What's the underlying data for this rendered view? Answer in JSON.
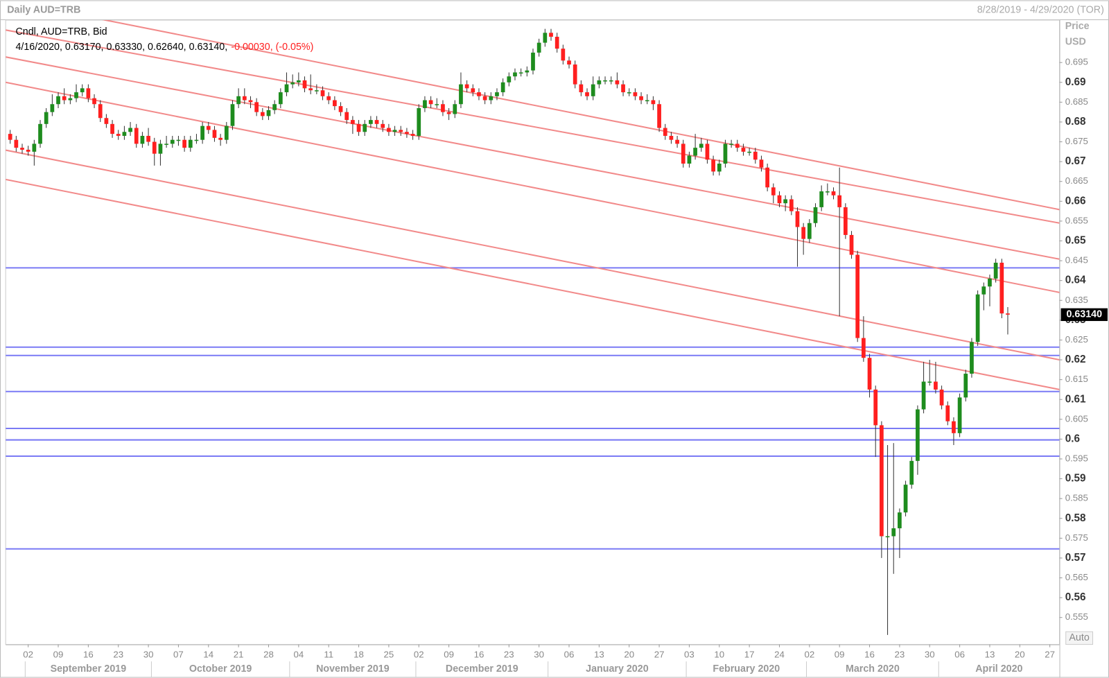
{
  "header": {
    "title": "Daily AUD=TRB",
    "range": "8/28/2019 - 4/29/2020 (TOR)",
    "axis_title": "Price",
    "axis_unit": "USD",
    "auto_label": "Auto"
  },
  "chart_data": {
    "type": "candlestick",
    "legend_title": "Cndl, AUD=TRB, Bid",
    "ohlc_label": "4/16/2020, 0.63170, 0.63330, 0.62640, 0.63140,",
    "change_label": "-0.00030, (-0.05%)",
    "up_color": "#1e8c1e",
    "down_color": "#ff1f1f",
    "trend_color": "#f28a8a",
    "level_color": "#7a7af5",
    "categories": [
      null,
      null,
      null,
      null,
      null,
      null,
      null,
      null,
      null,
      null,
      null,
      null,
      null,
      null,
      null,
      null,
      null,
      null,
      null,
      null,
      null,
      null,
      null,
      null,
      null,
      null,
      null,
      null,
      null,
      null,
      null,
      null,
      null,
      null,
      null,
      null,
      null,
      null,
      null,
      null,
      null,
      null,
      null,
      null,
      null,
      null,
      null,
      null,
      null,
      null,
      null,
      null,
      null,
      null,
      null,
      null,
      null,
      null,
      null,
      null,
      null,
      null,
      null,
      null,
      null,
      null,
      null,
      null,
      null,
      null,
      null,
      null,
      null,
      null,
      null,
      null,
      null,
      null,
      null,
      null,
      null,
      null,
      null,
      null,
      null,
      null,
      null,
      null,
      null,
      null,
      null,
      null,
      null,
      null,
      null,
      null,
      null,
      null,
      null,
      null,
      null,
      null,
      null,
      null,
      null,
      null,
      null,
      null,
      null,
      null,
      null,
      null,
      null,
      null,
      null,
      null,
      null,
      null,
      null,
      null,
      null,
      null,
      null,
      null,
      null,
      null,
      null,
      null,
      null,
      null,
      null,
      null,
      null,
      null,
      null,
      null,
      null,
      null,
      null,
      null,
      null,
      null,
      null,
      null,
      null,
      null,
      null,
      null,
      null,
      null,
      null,
      null,
      null,
      null,
      null,
      null,
      null,
      null,
      null,
      null,
      null,
      null,
      null,
      null,
      null,
      null,
      null
    ],
    "open": [
      0.677,
      0.6755,
      0.6735,
      0.673,
      0.6725,
      0.6745,
      0.6795,
      0.6825,
      0.6845,
      0.6865,
      0.6855,
      0.686,
      0.6875,
      0.6885,
      0.686,
      0.6845,
      0.681,
      0.6795,
      0.677,
      0.6765,
      0.6775,
      0.6785,
      0.6745,
      0.6765,
      0.675,
      0.672,
      0.6745,
      0.6745,
      0.6755,
      0.6755,
      0.6735,
      0.6755,
      0.6755,
      0.679,
      0.678,
      0.676,
      0.6755,
      0.679,
      0.6845,
      0.6865,
      0.6855,
      0.685,
      0.6825,
      0.6815,
      0.683,
      0.6845,
      0.6875,
      0.6895,
      0.69,
      0.6905,
      0.6885,
      0.688,
      0.688,
      0.6865,
      0.6855,
      0.684,
      0.6825,
      0.6805,
      0.6795,
      0.6775,
      0.6795,
      0.6805,
      0.6795,
      0.6785,
      0.6775,
      0.678,
      0.6775,
      0.677,
      0.6765,
      0.6835,
      0.6855,
      0.6845,
      0.6845,
      0.6825,
      0.682,
      0.6845,
      0.6895,
      0.6885,
      0.6875,
      0.6865,
      0.6855,
      0.6865,
      0.6875,
      0.69,
      0.6915,
      0.6925,
      0.6925,
      0.693,
      0.6975,
      0.7,
      0.7025,
      0.7015,
      0.6985,
      0.6955,
      0.6945,
      0.6895,
      0.6875,
      0.6865,
      0.6895,
      0.6905,
      0.6905,
      0.6905,
      0.6895,
      0.6875,
      0.6875,
      0.6865,
      0.6855,
      0.6855,
      0.6845,
      0.6785,
      0.6765,
      0.6755,
      0.6745,
      0.6695,
      0.6715,
      0.6735,
      0.6745,
      0.6705,
      0.6675,
      0.6695,
      0.6745,
      0.6745,
      0.6735,
      0.6725,
      0.6725,
      0.6705,
      0.6685,
      0.6635,
      0.6615,
      0.6595,
      0.6605,
      0.6575,
      0.6535,
      0.6505,
      0.6545,
      0.6585,
      0.6625,
      0.6625,
      0.6615,
      0.6585,
      0.6515,
      0.6465,
      0.6255,
      0.6205,
      0.6125,
      0.6035,
      0.5755,
      0.5755,
      0.5775,
      0.5815,
      0.5885,
      0.5945,
      0.6075,
      0.6145,
      0.6145,
      0.6125,
      0.6085,
      0.6045,
      0.6015,
      0.6105,
      0.6165,
      0.6245,
      0.6365,
      0.6385,
      0.6405,
      0.6445,
      0.6317
    ],
    "high": [
      0.678,
      0.6765,
      0.6745,
      0.674,
      0.6755,
      0.6805,
      0.6835,
      0.687,
      0.6875,
      0.6885,
      0.687,
      0.6895,
      0.6895,
      0.6895,
      0.687,
      0.6855,
      0.682,
      0.6805,
      0.678,
      0.679,
      0.68,
      0.6795,
      0.6775,
      0.6785,
      0.676,
      0.6755,
      0.6765,
      0.6765,
      0.6765,
      0.6765,
      0.6765,
      0.677,
      0.68,
      0.68,
      0.679,
      0.677,
      0.68,
      0.6855,
      0.6885,
      0.6885,
      0.6865,
      0.686,
      0.6835,
      0.684,
      0.6855,
      0.6885,
      0.6925,
      0.692,
      0.6925,
      0.6915,
      0.692,
      0.6895,
      0.689,
      0.6875,
      0.6865,
      0.685,
      0.6835,
      0.6815,
      0.6805,
      0.6805,
      0.6815,
      0.6815,
      0.6805,
      0.6795,
      0.679,
      0.679,
      0.6785,
      0.678,
      0.6845,
      0.6865,
      0.6865,
      0.686,
      0.6855,
      0.6835,
      0.6855,
      0.6925,
      0.6905,
      0.6895,
      0.6885,
      0.6875,
      0.6875,
      0.6885,
      0.691,
      0.6925,
      0.6935,
      0.6935,
      0.694,
      0.6985,
      0.701,
      0.7035,
      0.7035,
      0.7025,
      0.6995,
      0.6965,
      0.6955,
      0.6905,
      0.6885,
      0.6915,
      0.6915,
      0.6915,
      0.6915,
      0.6925,
      0.6905,
      0.6885,
      0.6885,
      0.6875,
      0.687,
      0.6865,
      0.6855,
      0.6795,
      0.6775,
      0.6765,
      0.6755,
      0.6725,
      0.677,
      0.676,
      0.6755,
      0.6715,
      0.6705,
      0.6755,
      0.6755,
      0.6755,
      0.6745,
      0.6735,
      0.6735,
      0.6715,
      0.6695,
      0.6645,
      0.6625,
      0.6615,
      0.6615,
      0.6585,
      0.6545,
      0.6555,
      0.6595,
      0.664,
      0.6645,
      0.6635,
      0.6685,
      0.6595,
      0.6525,
      0.6475,
      0.631,
      0.6215,
      0.6135,
      0.6045,
      0.5985,
      0.599,
      0.5825,
      0.5895,
      0.5955,
      0.6085,
      0.6195,
      0.62,
      0.6195,
      0.6135,
      0.6095,
      0.6055,
      0.6115,
      0.6175,
      0.6255,
      0.6375,
      0.6395,
      0.6415,
      0.6455,
      0.6455,
      0.6333
    ],
    "low": [
      0.6745,
      0.6725,
      0.672,
      0.6715,
      0.669,
      0.6735,
      0.6785,
      0.6815,
      0.6835,
      0.6845,
      0.6845,
      0.685,
      0.6865,
      0.685,
      0.6835,
      0.68,
      0.6785,
      0.676,
      0.6755,
      0.6755,
      0.6765,
      0.6735,
      0.6735,
      0.674,
      0.669,
      0.669,
      0.6735,
      0.6735,
      0.674,
      0.6725,
      0.6725,
      0.6745,
      0.6745,
      0.677,
      0.675,
      0.674,
      0.6745,
      0.678,
      0.6835,
      0.6845,
      0.6835,
      0.6815,
      0.6805,
      0.6805,
      0.682,
      0.6835,
      0.6865,
      0.6885,
      0.689,
      0.6875,
      0.687,
      0.687,
      0.6855,
      0.6845,
      0.683,
      0.6815,
      0.6795,
      0.677,
      0.6765,
      0.6765,
      0.6785,
      0.6785,
      0.6775,
      0.6765,
      0.6765,
      0.6765,
      0.676,
      0.6755,
      0.6755,
      0.6825,
      0.6835,
      0.6835,
      0.6815,
      0.6805,
      0.681,
      0.6835,
      0.6875,
      0.6865,
      0.6855,
      0.6845,
      0.6845,
      0.6855,
      0.6865,
      0.689,
      0.6905,
      0.6915,
      0.6915,
      0.692,
      0.6965,
      0.699,
      0.7005,
      0.6975,
      0.6945,
      0.6935,
      0.6885,
      0.6865,
      0.6855,
      0.6855,
      0.6885,
      0.6895,
      0.6895,
      0.6885,
      0.6865,
      0.6865,
      0.6855,
      0.6845,
      0.6845,
      0.683,
      0.6775,
      0.6755,
      0.6745,
      0.6735,
      0.6685,
      0.6685,
      0.6705,
      0.6725,
      0.6695,
      0.6665,
      0.6665,
      0.6685,
      0.6735,
      0.6725,
      0.6715,
      0.6715,
      0.6695,
      0.6675,
      0.6625,
      0.6595,
      0.6585,
      0.6575,
      0.6565,
      0.6435,
      0.6465,
      0.6495,
      0.6535,
      0.6575,
      0.6615,
      0.6605,
      0.631,
      0.6505,
      0.6455,
      0.6245,
      0.6195,
      0.6105,
      0.5955,
      0.57,
      0.5506,
      0.566,
      0.57,
      0.5805,
      0.5875,
      0.591,
      0.6065,
      0.6135,
      0.6115,
      0.6075,
      0.6035,
      0.5985,
      0.6005,
      0.6095,
      0.6155,
      0.6235,
      0.6325,
      0.6335,
      0.6395,
      0.6305,
      0.6264
    ],
    "close": [
      0.6755,
      0.6735,
      0.673,
      0.6725,
      0.6745,
      0.6795,
      0.6825,
      0.6845,
      0.6865,
      0.6855,
      0.686,
      0.6875,
      0.6885,
      0.686,
      0.6845,
      0.681,
      0.6795,
      0.677,
      0.6765,
      0.6775,
      0.6785,
      0.6745,
      0.6765,
      0.675,
      0.672,
      0.6745,
      0.6745,
      0.6755,
      0.6755,
      0.6735,
      0.6755,
      0.6755,
      0.679,
      0.678,
      0.676,
      0.6755,
      0.679,
      0.6845,
      0.6865,
      0.6855,
      0.685,
      0.6825,
      0.6815,
      0.683,
      0.6845,
      0.6875,
      0.6895,
      0.69,
      0.6905,
      0.6885,
      0.688,
      0.688,
      0.6865,
      0.6855,
      0.684,
      0.6825,
      0.6805,
      0.6795,
      0.6775,
      0.6795,
      0.6805,
      0.6795,
      0.6785,
      0.6775,
      0.678,
      0.6775,
      0.677,
      0.6765,
      0.6835,
      0.6855,
      0.6845,
      0.6845,
      0.6825,
      0.682,
      0.6845,
      0.6895,
      0.6885,
      0.6875,
      0.6865,
      0.6855,
      0.6865,
      0.6875,
      0.69,
      0.6915,
      0.6925,
      0.6925,
      0.693,
      0.6975,
      0.7,
      0.7025,
      0.7015,
      0.6985,
      0.6955,
      0.6945,
      0.6895,
      0.6875,
      0.6865,
      0.6895,
      0.6905,
      0.6905,
      0.6905,
      0.6895,
      0.6875,
      0.6875,
      0.6865,
      0.6855,
      0.6855,
      0.6845,
      0.6785,
      0.6765,
      0.6755,
      0.6745,
      0.6695,
      0.6715,
      0.6735,
      0.6745,
      0.6705,
      0.6675,
      0.6695,
      0.6745,
      0.6745,
      0.6735,
      0.6725,
      0.6725,
      0.6705,
      0.6685,
      0.6635,
      0.6615,
      0.6595,
      0.6605,
      0.6575,
      0.6535,
      0.6505,
      0.6545,
      0.6585,
      0.6625,
      0.6625,
      0.6615,
      0.6585,
      0.6515,
      0.6465,
      0.6255,
      0.6205,
      0.6125,
      0.6035,
      0.5755,
      0.5755,
      0.5775,
      0.5815,
      0.5885,
      0.5945,
      0.6075,
      0.6145,
      0.6145,
      0.6125,
      0.6085,
      0.6045,
      0.6015,
      0.6105,
      0.6165,
      0.6245,
      0.6365,
      0.6385,
      0.6405,
      0.6445,
      0.6317,
      0.6314
    ],
    "last_price": {
      "value": 0.6314,
      "label": "0.63140"
    },
    "horizontal_lines": [
      0.6432,
      0.6232,
      0.6211,
      0.612,
      0.6027,
      0.5998,
      0.5957,
      0.5723
    ],
    "trend_lines": [
      {
        "start": 0.7107,
        "end": 0.6579
      },
      {
        "start": 0.7032,
        "end": 0.6545
      },
      {
        "start": 0.6964,
        "end": 0.6454
      },
      {
        "start": 0.69,
        "end": 0.637
      },
      {
        "start": 0.6729,
        "end": 0.62
      },
      {
        "start": 0.6655,
        "end": 0.6125
      }
    ],
    "xlim": [
      -0.75,
      174.6
    ],
    "ylim": [
      0.5482,
      0.7057
    ],
    "yticks": [
      0.555,
      0.56,
      0.565,
      0.57,
      0.575,
      0.58,
      0.585,
      0.59,
      0.595,
      0.6,
      0.605,
      0.61,
      0.615,
      0.62,
      0.625,
      0.63,
      0.635,
      0.64,
      0.645,
      0.65,
      0.655,
      0.66,
      0.665,
      0.67,
      0.675,
      0.68,
      0.685,
      0.69,
      0.695
    ],
    "xticks": [
      {
        "value": 3,
        "label": "02"
      },
      {
        "value": 8,
        "label": "09"
      },
      {
        "value": 13,
        "label": "16"
      },
      {
        "value": 18,
        "label": "23"
      },
      {
        "value": 23,
        "label": "30"
      },
      {
        "value": 28,
        "label": "07"
      },
      {
        "value": 33,
        "label": "14"
      },
      {
        "value": 38,
        "label": "21"
      },
      {
        "value": 43,
        "label": "28"
      },
      {
        "value": 48,
        "label": "04"
      },
      {
        "value": 53,
        "label": "11"
      },
      {
        "value": 58,
        "label": "18"
      },
      {
        "value": 63,
        "label": "25"
      },
      {
        "value": 68,
        "label": "02"
      },
      {
        "value": 73,
        "label": "09"
      },
      {
        "value": 78,
        "label": "16"
      },
      {
        "value": 83,
        "label": "23"
      },
      {
        "value": 88,
        "label": "30"
      },
      {
        "value": 93,
        "label": "06"
      },
      {
        "value": 98,
        "label": "13"
      },
      {
        "value": 103,
        "label": "20"
      },
      {
        "value": 108,
        "label": "27"
      },
      {
        "value": 113,
        "label": "03"
      },
      {
        "value": 118,
        "label": "10"
      },
      {
        "value": 123,
        "label": "17"
      },
      {
        "value": 128,
        "label": "24"
      },
      {
        "value": 133,
        "label": "02"
      },
      {
        "value": 138,
        "label": "09"
      },
      {
        "value": 143,
        "label": "16"
      },
      {
        "value": 148,
        "label": "23"
      },
      {
        "value": 153,
        "label": "30"
      },
      {
        "value": 158,
        "label": "06"
      },
      {
        "value": 163,
        "label": "13"
      },
      {
        "value": 168,
        "label": "20"
      },
      {
        "value": 173,
        "label": "27"
      }
    ],
    "months": [
      {
        "label": "September 2019",
        "start": 3
      },
      {
        "label": "October 2019",
        "start": 24
      },
      {
        "label": "November 2019",
        "start": 47
      },
      {
        "label": "December 2019",
        "start": 68
      },
      {
        "label": "January 2020",
        "start": 90
      },
      {
        "label": "February 2020",
        "start": 113
      },
      {
        "label": "March 2020",
        "start": 133
      },
      {
        "label": "April 2020",
        "start": 155
      }
    ]
  }
}
